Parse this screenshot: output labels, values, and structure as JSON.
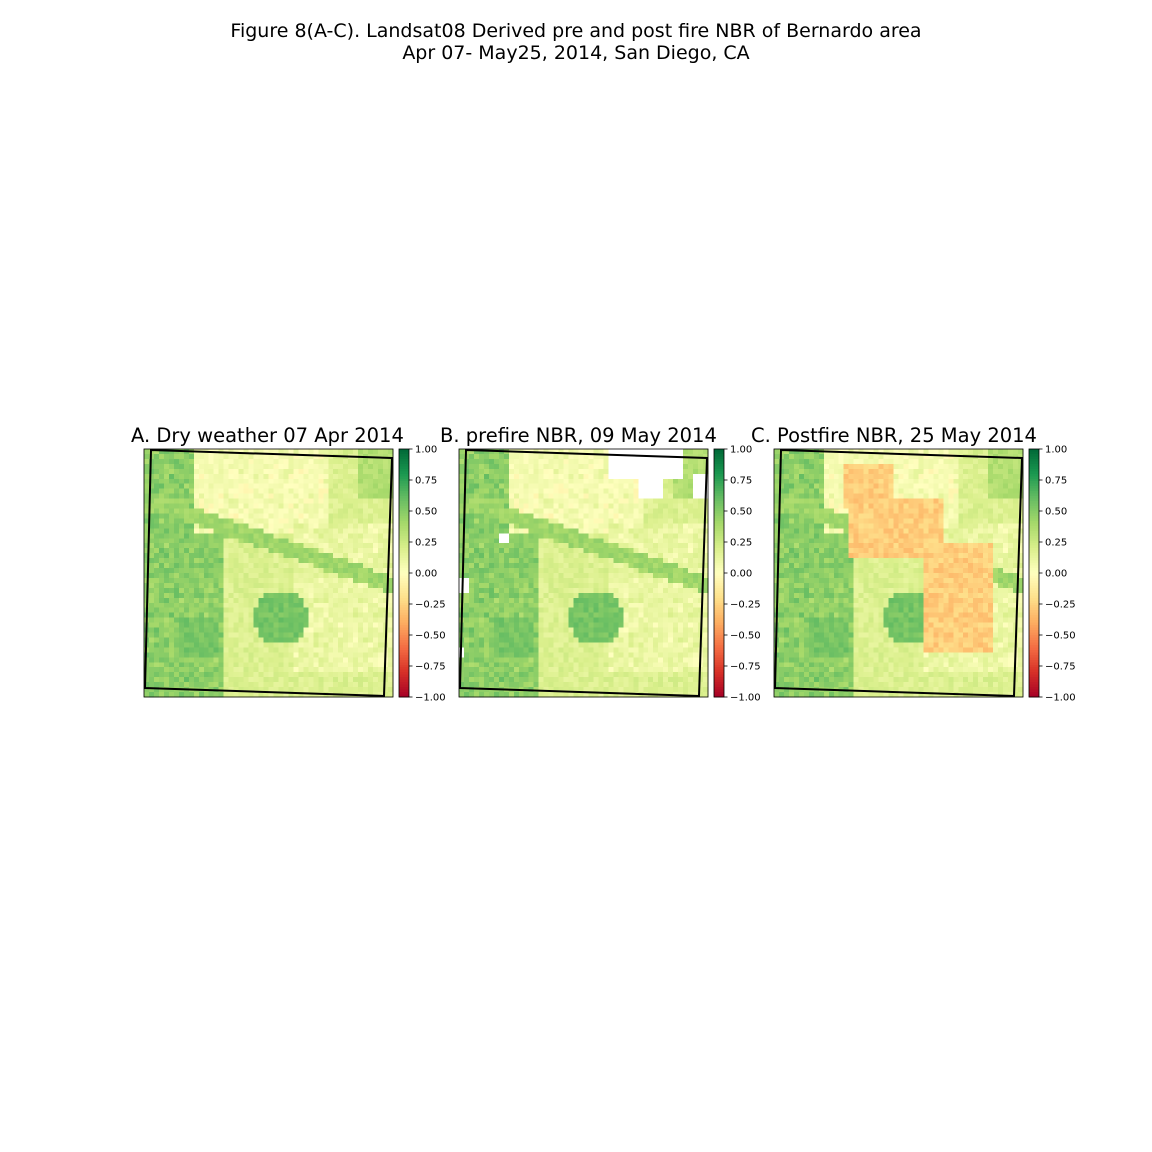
{
  "figure": {
    "title_line1": "Figure 8(A-C). Landsat08 Derived pre and post fire NBR of Bernardo  area",
    "title_line2": "Apr 07- May25, 2014, San Diego, CA"
  },
  "chart_data": [
    {
      "type": "heatmap",
      "title": "A. Dry weather 07 Apr 2014",
      "colormap": "RdYlGn",
      "colorbar_range": [
        -1.0,
        1.0
      ],
      "colorbar_ticks": [
        "1.00",
        "0.75",
        "0.50",
        "0.25",
        "0.00",
        "−0.25",
        "−0.50",
        "−0.75",
        "−1.00"
      ],
      "axes_visible": false,
      "burn_scar": false,
      "cloud_mask": false
    },
    {
      "type": "heatmap",
      "title": "B. prefire NBR, 09 May 2014",
      "colormap": "RdYlGn",
      "colorbar_range": [
        -1.0,
        1.0
      ],
      "colorbar_ticks": [
        "1.00",
        "0.75",
        "0.50",
        "0.25",
        "0.00",
        "−0.25",
        "−0.50",
        "−0.75",
        "−1.00"
      ],
      "axes_visible": false,
      "burn_scar": false,
      "cloud_mask": true
    },
    {
      "type": "heatmap",
      "title": "C. Postfire NBR, 25 May 2014",
      "colormap": "RdYlGn",
      "colorbar_range": [
        -1.0,
        1.0
      ],
      "colorbar_ticks": [
        "1.00",
        "0.75",
        "0.50",
        "0.25",
        "0.00",
        "−0.25",
        "−0.50",
        "−0.75",
        "−1.00"
      ],
      "axes_visible": false,
      "burn_scar": true,
      "cloud_mask": false
    }
  ]
}
